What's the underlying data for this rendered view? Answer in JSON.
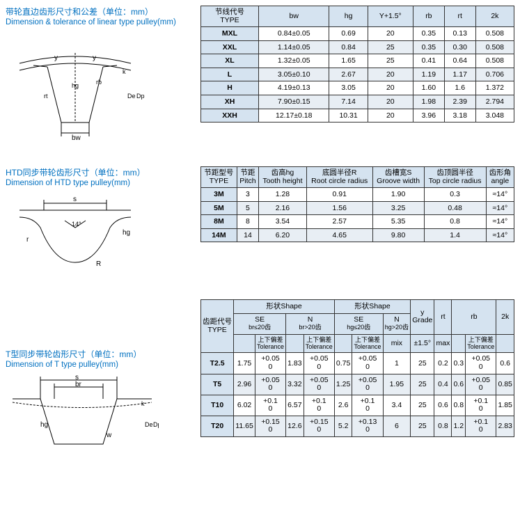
{
  "section1": {
    "title_cn": "带轮直边齿形尺寸和公差（单位：mm）",
    "title_en": "Dimension & tolerance of linear type pulley(mm)",
    "headers": {
      "type_cn": "节线代号",
      "type_en": "TYPE",
      "c2": "bw",
      "c3": "hg",
      "c4": "Y+1.5°",
      "c5": "rb",
      "c6": "rt",
      "c7": "2k"
    },
    "rows": [
      {
        "type": "MXL",
        "bw": "0.84±0.05",
        "hg": "0.69",
        "y": "20",
        "rb": "0.35",
        "rt": "0.13",
        "k2": "0.508"
      },
      {
        "type": "XXL",
        "bw": "1.14±0.05",
        "hg": "0.84",
        "y": "25",
        "rb": "0.35",
        "rt": "0.30",
        "k2": "0.508"
      },
      {
        "type": "XL",
        "bw": "1.32±0.05",
        "hg": "1.65",
        "y": "25",
        "rb": "0.41",
        "rt": "0.64",
        "k2": "0.508"
      },
      {
        "type": "L",
        "bw": "3.05±0.10",
        "hg": "2.67",
        "y": "20",
        "rb": "1.19",
        "rt": "1.17",
        "k2": "0.706"
      },
      {
        "type": "H",
        "bw": "4.19±0.13",
        "hg": "3.05",
        "y": "20",
        "rb": "1.60",
        "rt": "1.6",
        "k2": "1.372"
      },
      {
        "type": "XH",
        "bw": "7.90±0.15",
        "hg": "7.14",
        "y": "20",
        "rb": "1.98",
        "rt": "2.39",
        "k2": "2.794"
      },
      {
        "type": "XXH",
        "bw": "12.17±0.18",
        "hg": "10.31",
        "y": "20",
        "rb": "3.96",
        "rt": "3.18",
        "k2": "3.048"
      }
    ]
  },
  "section2": {
    "title_cn": "HTD同步带轮齿形尺寸（单位：mm）",
    "title_en": "Dimension of HTD type pulley(mm)",
    "headers": {
      "type_cn": "节距型号",
      "type_en": "TYPE",
      "pitch_cn": "节距",
      "pitch_en": "Pitch",
      "th_cn": "齿高hg",
      "th_en": "Tooth height",
      "rcr_cn": "底圆半径R",
      "rcr_en": "Root circle radius",
      "gw_cn": "齿槽宽S",
      "gw_en": "Groove width",
      "tcr_cn": "齿顶圆半径",
      "tcr_en": "Top circle radius",
      "ang_cn": "齿形角",
      "ang_en": "angle"
    },
    "rows": [
      {
        "type": "3M",
        "pitch": "3",
        "th": "1.28",
        "rcr": "0.91",
        "gw": "1.90",
        "tcr": "0.3",
        "ang": "≈14°"
      },
      {
        "type": "5M",
        "pitch": "5",
        "th": "2.16",
        "rcr": "1.56",
        "gw": "3.25",
        "tcr": "0.48",
        "ang": "≈14°"
      },
      {
        "type": "8M",
        "pitch": "8",
        "th": "3.54",
        "rcr": "2.57",
        "gw": "5.35",
        "tcr": "0.8",
        "ang": "≈14°"
      },
      {
        "type": "14M",
        "pitch": "14",
        "th": "6.20",
        "rcr": "4.65",
        "gw": "9.80",
        "tcr": "1.4",
        "ang": "≈14°"
      }
    ]
  },
  "section3": {
    "title_cn": "T型同步带轮齿形尺寸（单位：mm）",
    "title_en": "Dimension of T type pulley(mm)",
    "headers": {
      "type_cn": "齿距代号",
      "type_en": "TYPE",
      "shape1": "形状Shape",
      "shape2": "形状Shape",
      "se1": "SE",
      "se1_sub": "br≤20齿",
      "n1": "N",
      "n1_sub": "br>20齿",
      "se2": "SE",
      "se2_sub": "hg≤20齿",
      "n2": "N",
      "n2_sub": "hg>20齿",
      "y_cn": "y",
      "y_en": "Grade",
      "rt": "rt",
      "rb": "rb",
      "k2": "2k",
      "tol_cn": "上下偏差",
      "tol_en": "Tolerance",
      "mix": "mix",
      "pm15": "±1.5°",
      "max": "max"
    },
    "rows": [
      {
        "type": "T2.5",
        "se1": "1.75",
        "se1t": "+0.05 0",
        "n1": "1.83",
        "n1t": "+0.05 0",
        "se2": "0.75",
        "se2t": "+0.05 0",
        "n2": "1",
        "y": "25",
        "rt": "0.2",
        "rb": "0.3",
        "rbt": "+0.05 0",
        "k2": "0.6"
      },
      {
        "type": "T5",
        "se1": "2.96",
        "se1t": "+0.05 0",
        "n1": "3.32",
        "n1t": "+0.05 0",
        "se2": "1.25",
        "se2t": "+0.05 0",
        "n2": "1.95",
        "y": "25",
        "rt": "0.4",
        "rb": "0.6",
        "rbt": "+0.05 0",
        "k2": "0.85"
      },
      {
        "type": "T10",
        "se1": "6.02",
        "se1t": "+0.1 0",
        "n1": "6.57",
        "n1t": "+0.1 0",
        "se2": "2.6",
        "se2t": "+0.1 0",
        "n2": "3.4",
        "y": "25",
        "rt": "0.6",
        "rb": "0.8",
        "rbt": "+0.1 0",
        "k2": "1.85"
      },
      {
        "type": "T20",
        "se1": "11.65",
        "se1t": "+0.15 0",
        "n1": "12.6",
        "n1t": "+0.15 0",
        "se2": "5.2",
        "se2t": "+0.13 0",
        "n2": "6",
        "y": "25",
        "rt": "0.8",
        "rb": "1.2",
        "rbt": "+0.1 0",
        "k2": "2.83"
      }
    ]
  }
}
